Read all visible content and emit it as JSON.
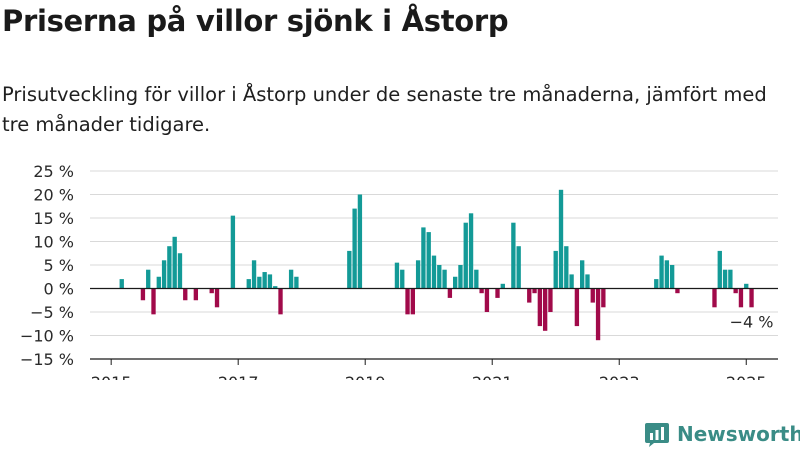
{
  "title": "Priserna på villor sjönk i Åstorp",
  "subtitle": "Prisutveckling för villor i Åstorp under de senaste tre månaderna, jämfört med tre månader tidigare.",
  "brand": {
    "name": "Newsworthy",
    "logo_icon": "bar-chart-logo-icon"
  },
  "colors": {
    "positive": "#139a97",
    "negative": "#a10a4a",
    "zero_line": "#1a1a1a",
    "grid": "#d9d9d9",
    "brand": "#3a8c86"
  },
  "chart_data": {
    "type": "bar",
    "title": "Priserna på villor sjönk i Åstorp",
    "xlabel": "",
    "ylabel": "",
    "ylim": [
      -15,
      25
    ],
    "yticks": [
      -15,
      -10,
      -5,
      0,
      5,
      10,
      15,
      20,
      25
    ],
    "ytick_labels": [
      "−15 %",
      "−10 %",
      "−5 %",
      "0 %",
      "5 %",
      "10 %",
      "15 %",
      "20 %",
      "25 %"
    ],
    "xticks": [
      2015,
      2017,
      2019,
      2021,
      2023,
      2025
    ],
    "xtick_labels": [
      "2015",
      "2017",
      "2019",
      "2021",
      "2023",
      "2025"
    ],
    "xlim": [
      "2014-09",
      "2025-07"
    ],
    "grid": true,
    "annotation": {
      "text": "−4 %",
      "date": "2025-02"
    },
    "points": [
      {
        "date": "2015-03",
        "value": 2
      },
      {
        "date": "2015-07",
        "value": -2.5
      },
      {
        "date": "2015-08",
        "value": 4
      },
      {
        "date": "2015-09",
        "value": -5.5
      },
      {
        "date": "2015-10",
        "value": 2.5
      },
      {
        "date": "2015-11",
        "value": 6
      },
      {
        "date": "2015-12",
        "value": 9
      },
      {
        "date": "2016-01",
        "value": 11
      },
      {
        "date": "2016-02",
        "value": 7.5
      },
      {
        "date": "2016-03",
        "value": -2.5
      },
      {
        "date": "2016-05",
        "value": -2.5
      },
      {
        "date": "2016-08",
        "value": -1
      },
      {
        "date": "2016-09",
        "value": -4
      },
      {
        "date": "2016-12",
        "value": 15.5
      },
      {
        "date": "2017-03",
        "value": 2
      },
      {
        "date": "2017-04",
        "value": 6
      },
      {
        "date": "2017-05",
        "value": 2.5
      },
      {
        "date": "2017-06",
        "value": 3.5
      },
      {
        "date": "2017-07",
        "value": 3
      },
      {
        "date": "2017-08",
        "value": 0.5
      },
      {
        "date": "2017-09",
        "value": -5.5
      },
      {
        "date": "2017-11",
        "value": 4
      },
      {
        "date": "2017-12",
        "value": 2.5
      },
      {
        "date": "2018-10",
        "value": 8
      },
      {
        "date": "2018-11",
        "value": 17
      },
      {
        "date": "2018-12",
        "value": 20
      },
      {
        "date": "2019-07",
        "value": 5.5
      },
      {
        "date": "2019-08",
        "value": 4
      },
      {
        "date": "2019-09",
        "value": -5.5
      },
      {
        "date": "2019-10",
        "value": -5.5
      },
      {
        "date": "2019-11",
        "value": 6
      },
      {
        "date": "2019-12",
        "value": 13
      },
      {
        "date": "2020-01",
        "value": 12
      },
      {
        "date": "2020-02",
        "value": 7
      },
      {
        "date": "2020-03",
        "value": 5
      },
      {
        "date": "2020-04",
        "value": 4
      },
      {
        "date": "2020-05",
        "value": -2
      },
      {
        "date": "2020-06",
        "value": 2.5
      },
      {
        "date": "2020-07",
        "value": 5
      },
      {
        "date": "2020-08",
        "value": 14
      },
      {
        "date": "2020-09",
        "value": 16
      },
      {
        "date": "2020-10",
        "value": 4
      },
      {
        "date": "2020-11",
        "value": -1
      },
      {
        "date": "2020-12",
        "value": -5
      },
      {
        "date": "2021-02",
        "value": -2
      },
      {
        "date": "2021-03",
        "value": 1
      },
      {
        "date": "2021-05",
        "value": 14
      },
      {
        "date": "2021-06",
        "value": 9
      },
      {
        "date": "2021-08",
        "value": -3
      },
      {
        "date": "2021-09",
        "value": -1
      },
      {
        "date": "2021-10",
        "value": -8
      },
      {
        "date": "2021-11",
        "value": -9
      },
      {
        "date": "2021-12",
        "value": -5
      },
      {
        "date": "2022-01",
        "value": 8
      },
      {
        "date": "2022-02",
        "value": 21
      },
      {
        "date": "2022-03",
        "value": 9
      },
      {
        "date": "2022-04",
        "value": 3
      },
      {
        "date": "2022-05",
        "value": -8
      },
      {
        "date": "2022-06",
        "value": 6
      },
      {
        "date": "2022-07",
        "value": 3
      },
      {
        "date": "2022-08",
        "value": -3
      },
      {
        "date": "2022-09",
        "value": -11
      },
      {
        "date": "2022-10",
        "value": -4
      },
      {
        "date": "2023-08",
        "value": 2
      },
      {
        "date": "2023-09",
        "value": 7
      },
      {
        "date": "2023-10",
        "value": 6
      },
      {
        "date": "2023-11",
        "value": 5
      },
      {
        "date": "2023-12",
        "value": -1
      },
      {
        "date": "2024-07",
        "value": -4
      },
      {
        "date": "2024-08",
        "value": 8
      },
      {
        "date": "2024-09",
        "value": 4
      },
      {
        "date": "2024-10",
        "value": 4
      },
      {
        "date": "2024-11",
        "value": -1
      },
      {
        "date": "2024-12",
        "value": -4
      },
      {
        "date": "2025-01",
        "value": 1
      },
      {
        "date": "2025-02",
        "value": -4
      }
    ]
  }
}
